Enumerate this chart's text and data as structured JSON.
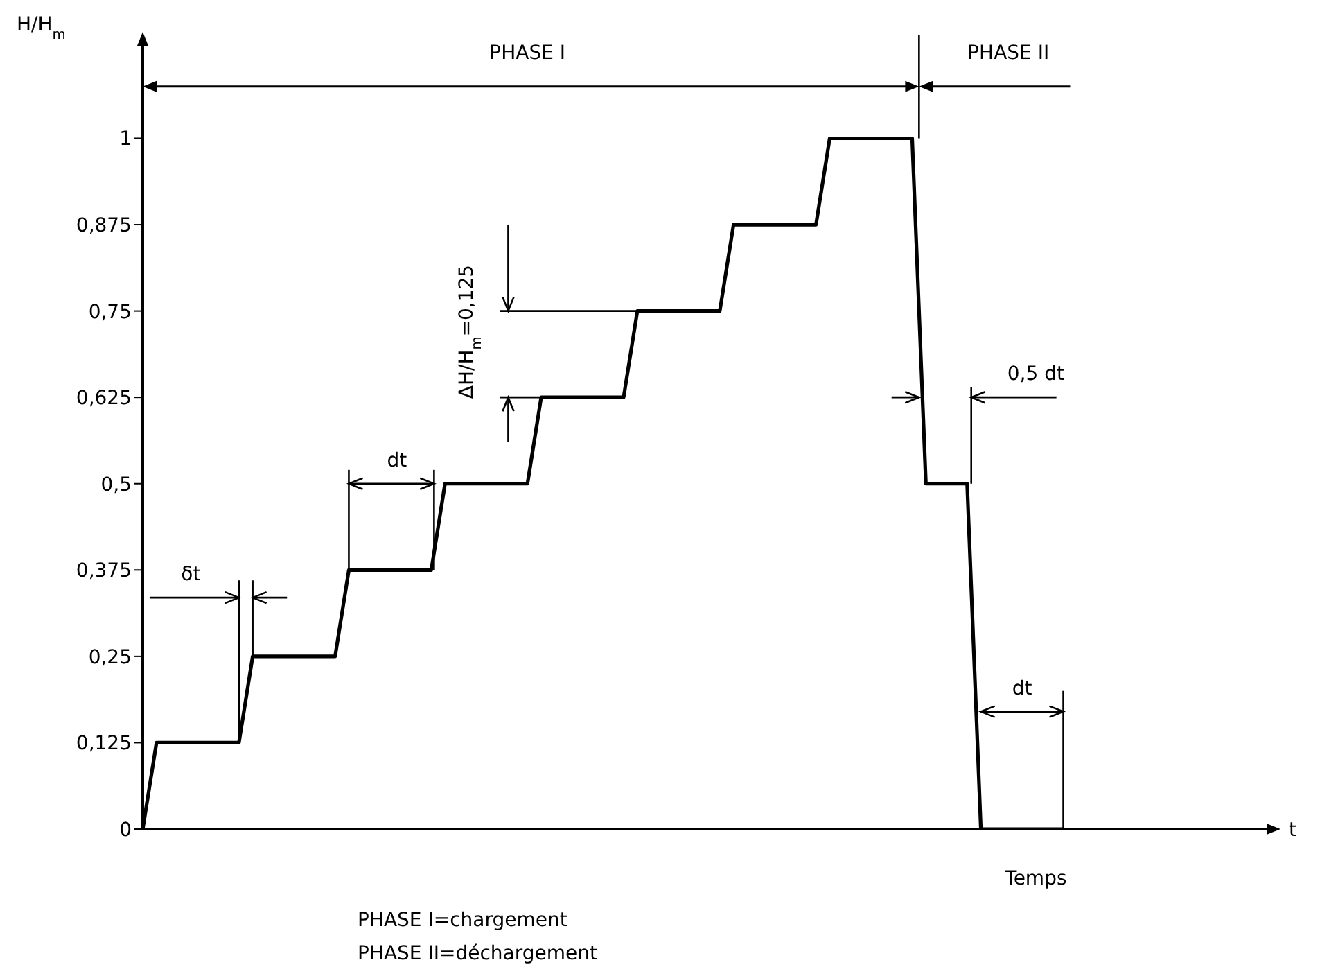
{
  "chart_data": {
    "type": "line",
    "ylabel": "H/H$_{m}$",
    "xlabel": "Temps",
    "categories": [
      null,
      null,
      null,
      null,
      null,
      null,
      null,
      null,
      null,
      null,
      null,
      null,
      null,
      null,
      null,
      null,
      null,
      null,
      null,
      null,
      null,
      null,
      null,
      null,
      null,
      null,
      null,
      null,
      null,
      null,
      null,
      null,
      null,
      null,
      null,
      null,
      null,
      null,
      null,
      null,
      null,
      null,
      null,
      null,
      null,
      null,
      null,
      null,
      null,
      null,
      null,
      null,
      null,
      null,
      null,
      null,
      null,
      null,
      null,
      null,
      null,
      null,
      null,
      null,
      null,
      null,
      null,
      null
    ],
    "series": [
      {
        "color": "#000000",
        "values": [
          0,
          0.125,
          0.125,
          0.125,
          0.125,
          0.125,
          0.125,
          0.125,
          0.25,
          0.25,
          0.25,
          0.25,
          0.25,
          0.25,
          0.25,
          0.375,
          0.375,
          0.375,
          0.375,
          0.375,
          0.375,
          0.375,
          0.5,
          0.5,
          0.5,
          0.5,
          0.5,
          0.5,
          0.5,
          0.625,
          0.625,
          0.625,
          0.625,
          0.625,
          0.625,
          0.625,
          0.75,
          0.75,
          0.75,
          0.75,
          0.75,
          0.75,
          0.75,
          0.875,
          0.875,
          0.875,
          0.875,
          0.875,
          0.875,
          0.875,
          1,
          1,
          1,
          1,
          1,
          1,
          1,
          0.5,
          0.5,
          0.5,
          0.5,
          0,
          0,
          0,
          0,
          0,
          0,
          0
        ]
      }
    ],
    "ylim": [
      0,
      1.15
    ],
    "yticks": [
      0,
      {
        "value": 0.125,
        "label": "0,125"
      },
      {
        "value": 0.25,
        "label": "0,25"
      },
      {
        "value": 0.375,
        "label": "0,375"
      },
      {
        "value": 0.5,
        "label": "0,5"
      },
      {
        "value": 0.625,
        "label": "0,625"
      },
      {
        "value": 0.75,
        "label": "0,75"
      },
      {
        "value": 0.875,
        "label": "0,875"
      },
      1
    ],
    "tick_labels": "y",
    "marker": "none",
    "line_style": "solid",
    "annotations": [
      "PHASE I",
      "PHASE II",
      "ΔH/H$_{m}$=0,125",
      "dt",
      "δt",
      "0,5 dt",
      "dt",
      "t",
      "PHASE I=chargement",
      "PHASE II=déchargement"
    ]
  }
}
